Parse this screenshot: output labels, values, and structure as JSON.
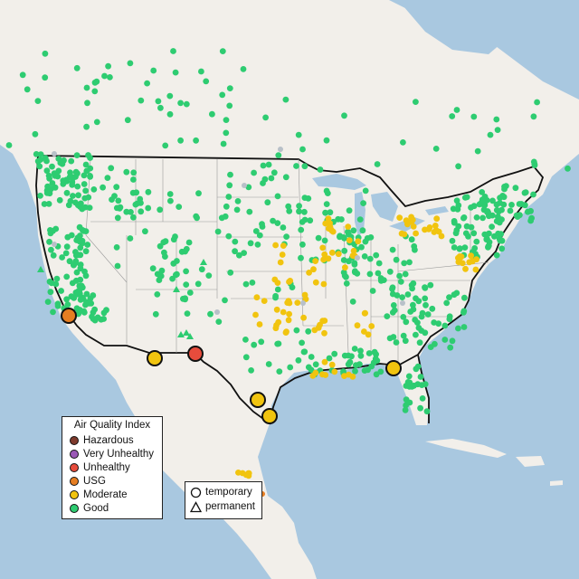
{
  "legend": {
    "title": "Air Quality Index",
    "items": [
      {
        "label": "Hazardous",
        "color": "#7e3a2c",
        "key": "hazardous"
      },
      {
        "label": "Very Unhealthy",
        "color": "#9b59b6",
        "key": "very-unhealthy"
      },
      {
        "label": "Unhealthy",
        "color": "#e74c3c",
        "key": "unhealthy"
      },
      {
        "label": "USG",
        "color": "#e67e22",
        "key": "usg"
      },
      {
        "label": "Moderate",
        "color": "#f1c40f",
        "key": "moderate"
      },
      {
        "label": "Good",
        "color": "#2ecc71",
        "key": "good"
      }
    ]
  },
  "monitor_types": {
    "temporary_label": "temporary",
    "permanent_label": "permanent"
  },
  "colors": {
    "ocean": "#a9c8e0",
    "land": "#f2efea",
    "land_other": "#ebe8e3",
    "border": "#111111",
    "state_line": "#9a9a9a",
    "good": "#2ecc71",
    "moderate": "#f1c40f",
    "usg": "#e67e22",
    "unhealthy": "#e74c3c",
    "no_data": "#b8c0c8"
  },
  "highlighted_stations": [
    {
      "place": "Southern California coast",
      "category": "usg"
    },
    {
      "place": "New Mexico border",
      "category": "unhealthy"
    },
    {
      "place": "Arizona border",
      "category": "moderate"
    },
    {
      "place": "South Texas",
      "category": "moderate"
    },
    {
      "place": "South Texas coast",
      "category": "moderate"
    },
    {
      "place": "Florida panhandle",
      "category": "moderate"
    }
  ]
}
